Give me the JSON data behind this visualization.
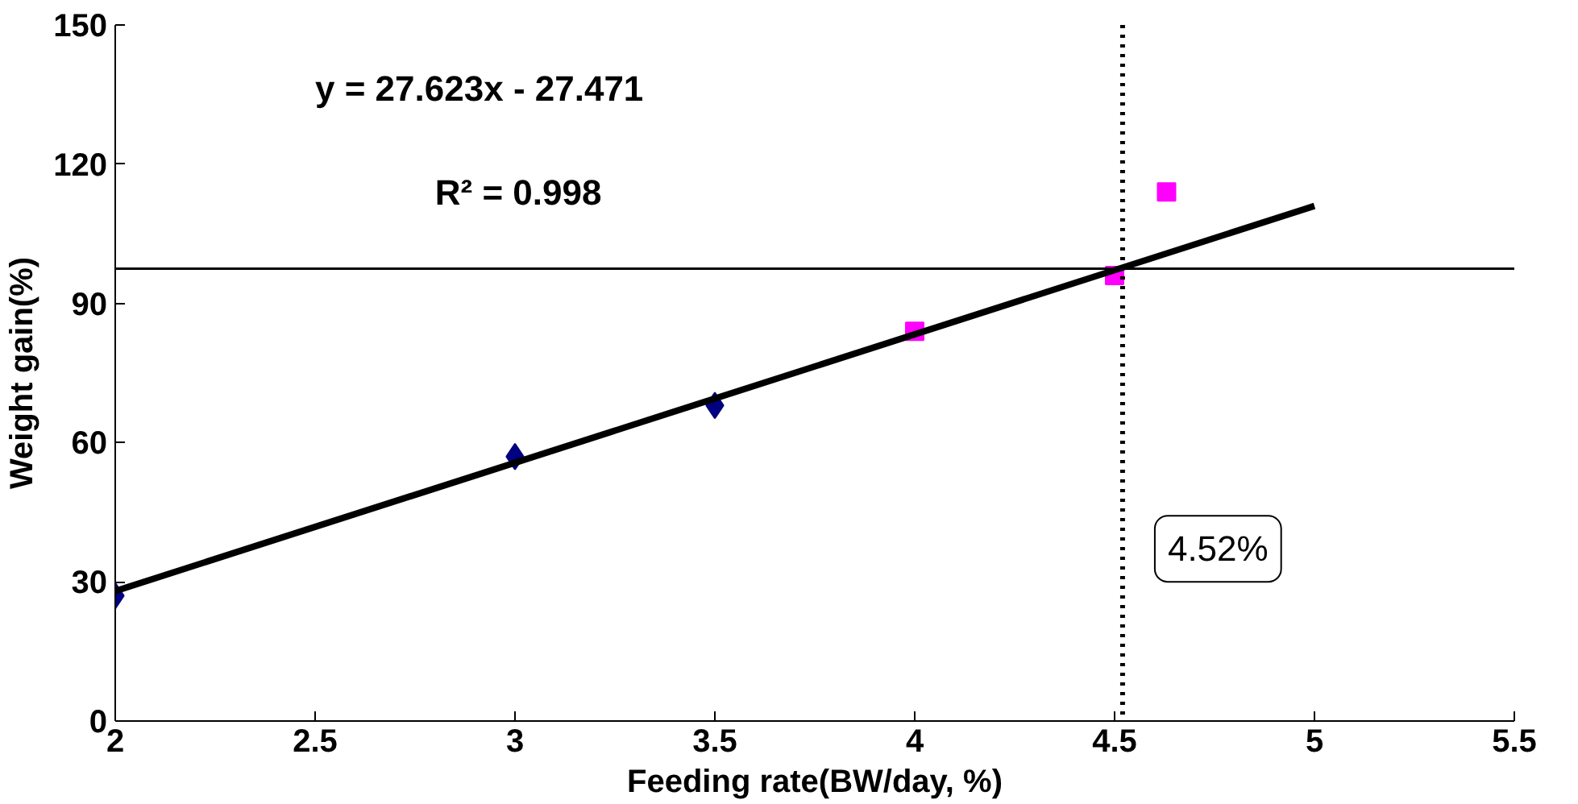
{
  "chart_data": {
    "type": "scatter",
    "xlabel": "Feeding rate(BW/day, %)",
    "ylabel": "Weight gain(%)",
    "xlim": [
      2,
      5.5
    ],
    "xticks": [
      2,
      2.5,
      3,
      3.5,
      4,
      4.5,
      5,
      5.5
    ],
    "ylim": [
      0,
      150
    ],
    "yticks": [
      0,
      30,
      60,
      90,
      120,
      150
    ],
    "grid": false,
    "series": [
      {
        "marker": "diamond",
        "color": "#000080",
        "x": [
          2,
          3,
          3.5
        ],
        "values": [
          27,
          57,
          68
        ]
      },
      {
        "marker": "square",
        "color": "#ff00ff",
        "x": [
          4,
          4.5,
          4.63
        ],
        "values": [
          84,
          96,
          114
        ]
      },
      {
        "type": "line",
        "marker": "none",
        "line_style": "solid",
        "color": "#000000",
        "x": [
          2,
          5
        ],
        "values": [
          28,
          111
        ]
      }
    ],
    "ref_lines": [
      {
        "axis": "y",
        "value": 97.5,
        "color": "#000000",
        "line_style": "solid"
      },
      {
        "axis": "x",
        "value": 4.52,
        "label": "4.52%",
        "color": "#000000",
        "line_style": "dotted"
      }
    ],
    "annotations": [
      "y = 27.623x - 27.471",
      "R² = 0.998"
    ]
  }
}
